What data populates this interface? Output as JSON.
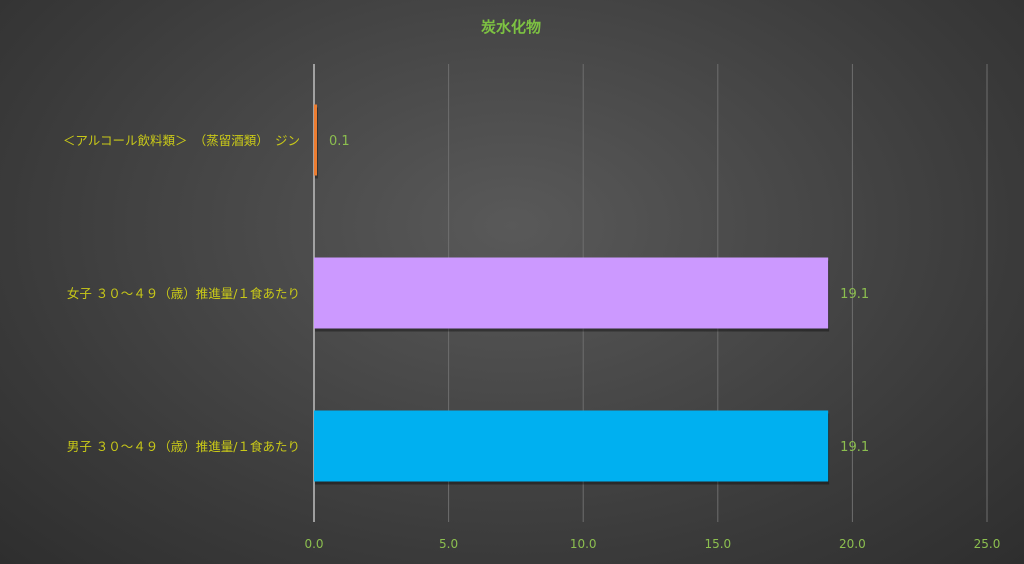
{
  "chart_data": {
    "type": "bar",
    "orientation": "horizontal",
    "title": "炭水化物",
    "categories": [
      "＜アルコール飲料類＞　（蒸留酒類）　ジン",
      "女子 ３０～４９（歳）推進量/１食あたり",
      "男子 ３０～４９（歳）推進量/１食あたり"
    ],
    "values": [
      0.1,
      19.1,
      19.1
    ],
    "data_labels": [
      "0.1",
      "19.1",
      "19.1"
    ],
    "bar_colors": [
      "#ed7d31",
      "#cc99ff",
      "#00b0f0"
    ],
    "xlim": [
      0,
      25
    ],
    "xticks": [
      "0.0",
      "5.0",
      "10.0",
      "15.0",
      "20.0",
      "25.0"
    ],
    "grid": true,
    "legend": "none",
    "colors": {
      "title": "#7dc242",
      "category_label": "#c9c918",
      "value_label": "#8cbf4f",
      "background": "#474747"
    }
  }
}
